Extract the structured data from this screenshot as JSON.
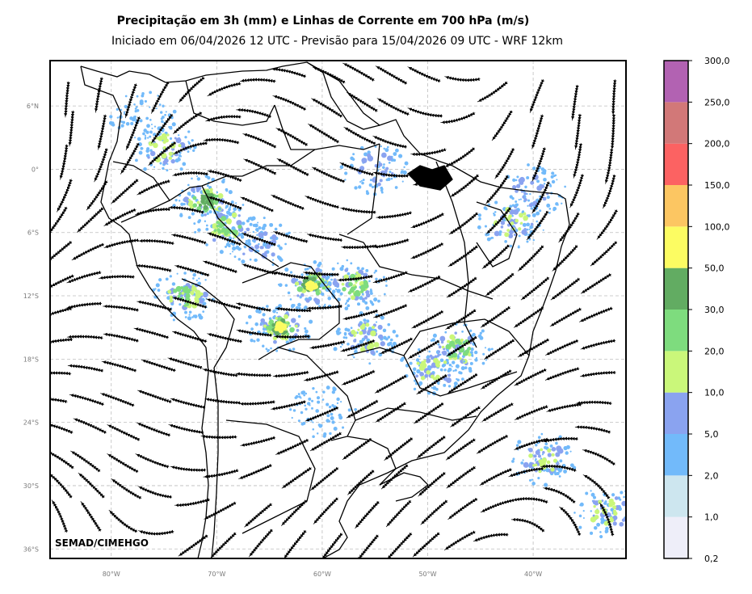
{
  "title": "Precipitação em 3h (mm) e Linhas de Corrente em 700 hPa (m/s)",
  "subtitle": "Iniciado em 06/04/2026 12 UTC - Previsão para 15/04/2026 09 UTC - WRF 12km",
  "credit": "SEMAD/CIMEHGO",
  "map": {
    "lon_range": [
      -85.8,
      -31.2
    ],
    "lat_range": [
      -36.9,
      10.3
    ],
    "gridlines": "dashed",
    "lat_ticks": [
      {
        "value": 6,
        "label": "6°N"
      },
      {
        "value": 0,
        "label": "0°"
      },
      {
        "value": -6,
        "label": "6°S"
      },
      {
        "value": -12,
        "label": "12°S"
      },
      {
        "value": -18,
        "label": "18°S"
      },
      {
        "value": -24,
        "label": "24°S"
      },
      {
        "value": -30,
        "label": "30°S"
      },
      {
        "value": -36,
        "label": "36°S"
      }
    ],
    "lon_ticks": [
      {
        "value": -80,
        "label": "80°W"
      },
      {
        "value": -70,
        "label": "70°W"
      },
      {
        "value": -60,
        "label": "60°W"
      },
      {
        "value": -50,
        "label": "50°W"
      },
      {
        "value": -40,
        "label": "40°W"
      }
    ],
    "precip_areas": [
      {
        "lon": -77,
        "lat": 5,
        "level": "2-5"
      },
      {
        "lon": -75,
        "lat": 2,
        "level": "10-20"
      },
      {
        "lon": -71,
        "lat": -3,
        "level": "30-50"
      },
      {
        "lon": -69,
        "lat": -5.5,
        "level": "20-30"
      },
      {
        "lon": -66,
        "lat": -7,
        "level": "5-10"
      },
      {
        "lon": -61,
        "lat": -11,
        "level": "50-100"
      },
      {
        "lon": -57,
        "lat": -11,
        "level": "20-30"
      },
      {
        "lon": -64,
        "lat": -15,
        "level": "50-100"
      },
      {
        "lon": -73,
        "lat": -12,
        "level": "20-30"
      },
      {
        "lon": -56,
        "lat": -16,
        "level": "10-20"
      },
      {
        "lon": -47,
        "lat": -17,
        "level": "20-30"
      },
      {
        "lon": -49.5,
        "lat": -19,
        "level": "10-20"
      },
      {
        "lon": -55,
        "lat": 0,
        "level": "5-10"
      },
      {
        "lon": -42,
        "lat": -5,
        "level": "10-20"
      },
      {
        "lon": -40,
        "lat": -2,
        "level": "5-10"
      },
      {
        "lon": -60,
        "lat": -23,
        "level": "2-5"
      },
      {
        "lon": -39,
        "lat": -27.5,
        "level": "10-20"
      },
      {
        "lon": -33,
        "lat": -32.5,
        "level": "10-20"
      }
    ]
  },
  "colorbar": {
    "levels": [
      "0,2",
      "1,0",
      "2,0",
      "5,0",
      "10,0",
      "20,0",
      "30,0",
      "50,0",
      "100,0",
      "150,0",
      "200,0",
      "250,0",
      "300,0"
    ],
    "colors": [
      "#eeeef9",
      "#cde6ef",
      "#72bafa",
      "#8aa3f0",
      "#caf77a",
      "#7edc7e",
      "#62ac62",
      "#fcfc62",
      "#fcc662",
      "#fc6262",
      "#d27878",
      "#b262b2"
    ]
  }
}
